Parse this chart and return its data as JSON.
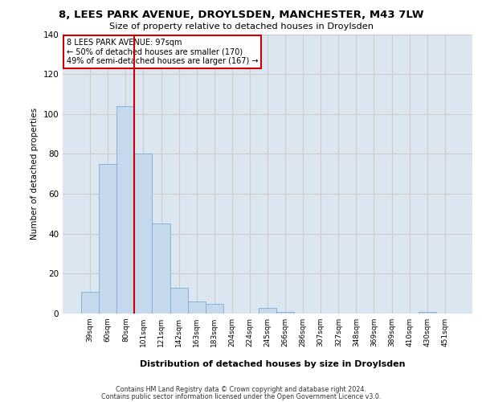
{
  "title": "8, LEES PARK AVENUE, DROYLSDEN, MANCHESTER, M43 7LW",
  "subtitle": "Size of property relative to detached houses in Droylsden",
  "xlabel": "Distribution of detached houses by size in Droylsden",
  "ylabel": "Number of detached properties",
  "categories": [
    "39sqm",
    "60sqm",
    "80sqm",
    "101sqm",
    "121sqm",
    "142sqm",
    "163sqm",
    "183sqm",
    "204sqm",
    "224sqm",
    "245sqm",
    "266sqm",
    "286sqm",
    "307sqm",
    "327sqm",
    "348sqm",
    "369sqm",
    "389sqm",
    "410sqm",
    "430sqm",
    "451sqm"
  ],
  "values": [
    11,
    75,
    104,
    80,
    45,
    13,
    6,
    5,
    0,
    0,
    3,
    1,
    0,
    0,
    0,
    0,
    0,
    0,
    0,
    1,
    0
  ],
  "bar_color": "#c6d9ec",
  "bar_edge_color": "#7aafd4",
  "vline_color": "#cc0000",
  "annotation_title": "8 LEES PARK AVENUE: 97sqm",
  "annotation_line1": "← 50% of detached houses are smaller (170)",
  "annotation_line2": "49% of semi-detached houses are larger (167) →",
  "annotation_box_color": "#ffffff",
  "annotation_box_edge": "#cc0000",
  "ylim": [
    0,
    140
  ],
  "yticks": [
    0,
    20,
    40,
    60,
    80,
    100,
    120,
    140
  ],
  "grid_color": "#cccccc",
  "background_color": "#dce6f0",
  "footer_line1": "Contains HM Land Registry data © Crown copyright and database right 2024.",
  "footer_line2": "Contains public sector information licensed under the Open Government Licence v3.0."
}
